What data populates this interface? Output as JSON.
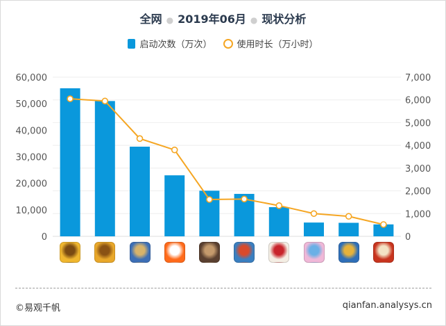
{
  "title": {
    "part1": "全网",
    "part2": "2019年06月",
    "part3": "现状分析"
  },
  "legend": {
    "bar_label": "启动次数（万次）",
    "line_label": "使用时长（万小时）"
  },
  "colors": {
    "bar": "#0a98dc",
    "line": "#f5a623",
    "grid": "#eeeeee"
  },
  "chart_data": {
    "type": "bar",
    "categories": [
      "app-1",
      "app-2",
      "app-3",
      "app-4",
      "app-5",
      "app-6",
      "app-7",
      "app-8",
      "app-9",
      "app-10"
    ],
    "series": [
      {
        "name": "启动次数（万次）",
        "type": "bar",
        "axis": "left",
        "values": [
          55800,
          51000,
          33800,
          23000,
          17200,
          16000,
          11000,
          5200,
          5100,
          4500
        ]
      },
      {
        "name": "使用时长（万小时）",
        "type": "line",
        "axis": "right",
        "values": [
          6050,
          5950,
          4300,
          3800,
          1620,
          1640,
          1350,
          1000,
          880,
          520
        ]
      }
    ],
    "ylim_left": [
      0,
      60000
    ],
    "yticks_left": [
      "0",
      "10,000",
      "20,000",
      "30,000",
      "40,000",
      "50,000",
      "60,000"
    ],
    "ylim_right": [
      0,
      7000
    ],
    "yticks_right": [
      "0",
      "1,000",
      "2,000",
      "3,000",
      "4,000",
      "5,000",
      "6,000",
      "7,000"
    ],
    "grid": true,
    "legend_position": "top-center"
  },
  "app_icons": [
    {
      "name": "clash-of-clans-icon",
      "colors": [
        "#f0b72f",
        "#7a4a12"
      ]
    },
    {
      "name": "clash-of-clans-icon",
      "colors": [
        "#e9a82a",
        "#8a5214"
      ]
    },
    {
      "name": "clash-royale-icon",
      "colors": [
        "#3d6fb6",
        "#d7b36a"
      ]
    },
    {
      "name": "orange-app-icon",
      "colors": [
        "#ff6a1a",
        "#ffffff"
      ]
    },
    {
      "name": "warrior-game-icon",
      "colors": [
        "#5a4030",
        "#c49a6c"
      ]
    },
    {
      "name": "boom-beach-icon",
      "colors": [
        "#3a7fc0",
        "#d94a2b"
      ]
    },
    {
      "name": "chinese-chess-icon",
      "colors": [
        "#f4eee4",
        "#c8242b"
      ]
    },
    {
      "name": "anime-girl-icon",
      "colors": [
        "#f0b8d8",
        "#6ab0e6"
      ]
    },
    {
      "name": "clash-hero-icon",
      "colors": [
        "#2f6fb8",
        "#e6b23a"
      ]
    },
    {
      "name": "football-game-icon",
      "colors": [
        "#c8341e",
        "#f3e2c4"
      ]
    }
  ],
  "footer": {
    "left": "©易观千帆",
    "right": "qianfan.analysys.cn"
  }
}
